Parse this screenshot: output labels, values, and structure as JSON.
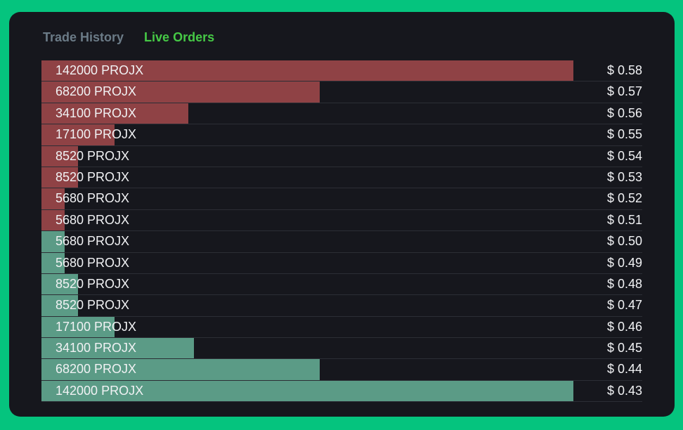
{
  "tabs": [
    {
      "label": "Trade History",
      "active": false
    },
    {
      "label": "Live Orders",
      "active": true
    }
  ],
  "colors": {
    "background": "#05c47e",
    "panel": "#16171d",
    "ask_bar": "#8f4245",
    "bid_bar": "#5b9b86",
    "active_tab": "#46c946",
    "inactive_tab": "#6b7b87"
  },
  "orders": [
    {
      "side": "ask",
      "amount": "142000 PROJX",
      "price": "$ 0.58",
      "depth": 1.0
    },
    {
      "side": "ask",
      "amount": "68200 PROJX",
      "price": "$ 0.57",
      "depth": 0.523
    },
    {
      "side": "ask",
      "amount": "34100 PROJX",
      "price": "$ 0.56",
      "depth": 0.276
    },
    {
      "side": "ask",
      "amount": "17100 PROJX",
      "price": "$ 0.55",
      "depth": 0.138
    },
    {
      "side": "ask",
      "amount": "8520 PROJX",
      "price": "$ 0.54",
      "depth": 0.069
    },
    {
      "side": "ask",
      "amount": "8520 PROJX",
      "price": "$ 0.53",
      "depth": 0.069
    },
    {
      "side": "ask",
      "amount": "5680 PROJX",
      "price": "$ 0.52",
      "depth": 0.044
    },
    {
      "side": "ask",
      "amount": "5680 PROJX",
      "price": "$ 0.51",
      "depth": 0.044
    },
    {
      "side": "bid",
      "amount": "5680 PROJX",
      "price": "$ 0.50",
      "depth": 0.044
    },
    {
      "side": "bid",
      "amount": "5680 PROJX",
      "price": "$ 0.49",
      "depth": 0.044
    },
    {
      "side": "bid",
      "amount": "8520 PROJX",
      "price": "$ 0.48",
      "depth": 0.069
    },
    {
      "side": "bid",
      "amount": "8520 PROJX",
      "price": "$ 0.47",
      "depth": 0.069
    },
    {
      "side": "bid",
      "amount": "17100 PROJX",
      "price": "$ 0.46",
      "depth": 0.138
    },
    {
      "side": "bid",
      "amount": "34100 PROJX",
      "price": "$ 0.45",
      "depth": 0.286
    },
    {
      "side": "bid",
      "amount": "68200 PROJX",
      "price": "$ 0.44",
      "depth": 0.523
    },
    {
      "side": "bid",
      "amount": "142000 PROJX",
      "price": "$ 0.43",
      "depth": 1.0
    }
  ]
}
